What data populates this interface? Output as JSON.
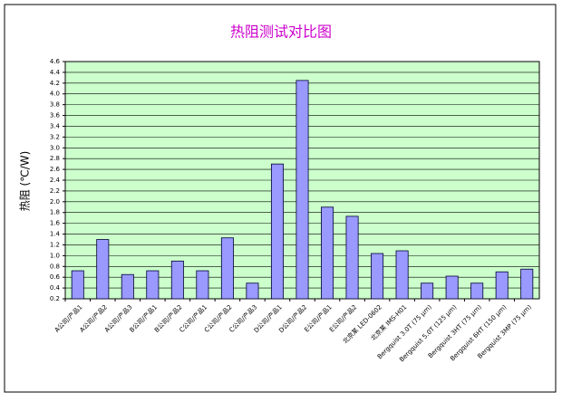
{
  "chart_data": {
    "type": "bar",
    "title": "热阻测试对比图",
    "y_label": "热阻 (℃/W)",
    "categories": [
      "A公司/产品1",
      "A公司/产品2",
      "A公司/产品3",
      "B公司/产品1",
      "B公司/产品2",
      "C公司/产品1",
      "C公司/产品2",
      "C公司/产品3",
      "D公司/产品1",
      "D公司/产品2",
      "E公司/产品1",
      "E公司/产品2",
      "北京某 LED-0602",
      "北京某 IMS-H01",
      "Bergquist 3.0T (75 μm)",
      "Bergquist 5.0T (125 μm)",
      "Bergquist 3HT (75 μm)",
      "Bergquist 6HT (150 μm)",
      "Bergquist 3MP (75 μm)"
    ],
    "values": [
      0.72,
      1.3,
      0.65,
      0.72,
      0.9,
      0.72,
      1.33,
      0.49,
      2.7,
      4.25,
      1.9,
      1.73,
      1.04,
      1.09,
      0.49,
      0.62,
      0.49,
      0.7,
      0.75
    ],
    "color": "#9999ff",
    "plot_background": "#ccffcc",
    "ylim": [
      0.2,
      4.6
    ],
    "yticks": [
      0.2,
      0.4,
      0.6,
      0.8,
      {
        "value": 1,
        "label": "1.0"
      },
      1.2,
      1.4,
      1.6,
      1.8,
      {
        "value": 2,
        "label": "2.0"
      },
      2.2,
      2.4,
      2.6,
      2.8,
      {
        "value": 3,
        "label": "3.0"
      },
      3.2,
      3.4,
      3.6,
      3.8,
      {
        "value": 4,
        "label": "4.0"
      },
      4.2,
      4.4,
      4.6
    ],
    "grid": true
  }
}
